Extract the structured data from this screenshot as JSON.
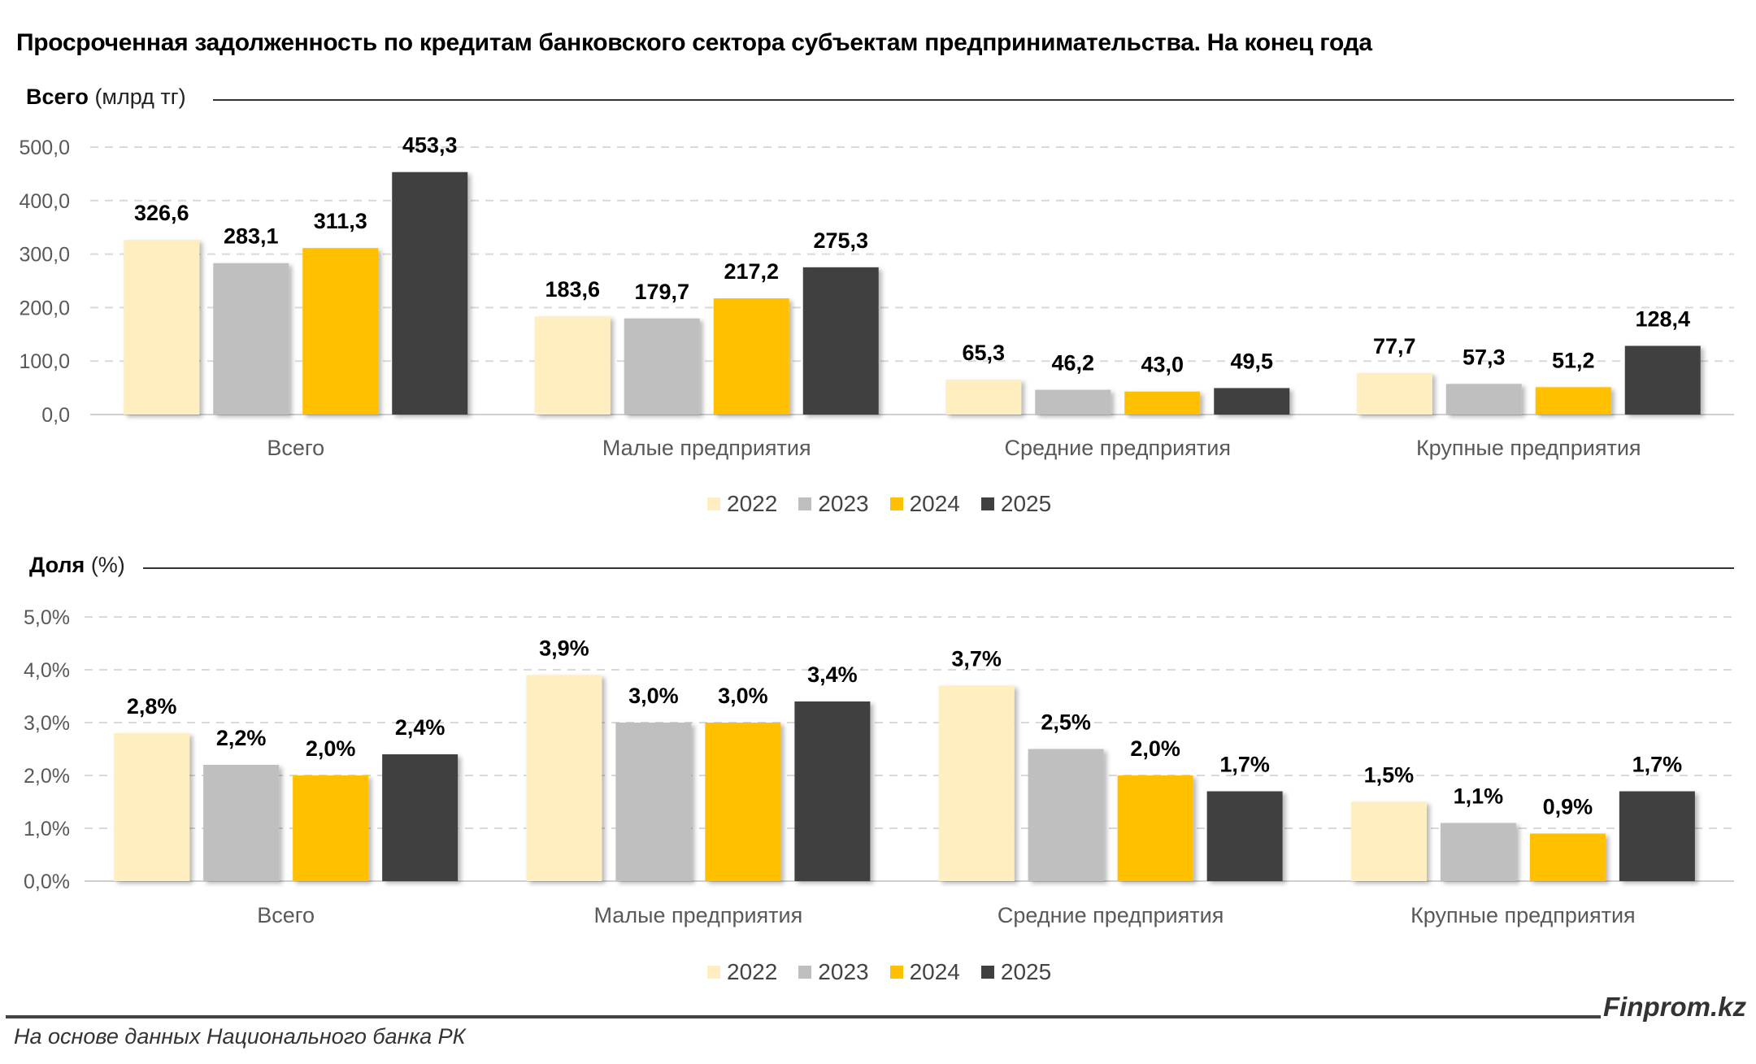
{
  "title": "Просроченная задолженность по кредитам банковского сектора субъектам предпринимательства. На конец года",
  "colors": {
    "2022": "#FFEFC0",
    "2023": "#BFBFBF",
    "2024": "#FFC000",
    "2025": "#404040"
  },
  "chart_data": [
    {
      "type": "bar",
      "section_label_bold": "Всего",
      "section_label_unit": "(млрд тг)",
      "categories": [
        "Всего",
        "Малые предприятия",
        "Средние предприятия",
        "Крупные предприятия"
      ],
      "ylim": [
        0,
        500
      ],
      "yticks": [
        "0,0",
        "100,0",
        "200,0",
        "300,0",
        "400,0",
        "500,0"
      ],
      "grid": true,
      "legend": "bottom",
      "series": [
        {
          "name": "2022",
          "values": [
            326.6,
            183.6,
            65.3,
            77.7
          ],
          "labels": [
            "326,6",
            "183,6",
            "65,3",
            "77,7"
          ]
        },
        {
          "name": "2023",
          "values": [
            283.1,
            179.7,
            46.2,
            57.3
          ],
          "labels": [
            "283,1",
            "179,7",
            "46,2",
            "57,3"
          ]
        },
        {
          "name": "2024",
          "values": [
            311.3,
            217.2,
            43.0,
            51.2
          ],
          "labels": [
            "311,3",
            "217,2",
            "43,0",
            "51,2"
          ]
        },
        {
          "name": "2025",
          "values": [
            453.3,
            275.3,
            49.5,
            128.4
          ],
          "labels": [
            "453,3",
            "275,3",
            "49,5",
            "128,4"
          ]
        }
      ]
    },
    {
      "type": "bar",
      "section_label_bold": "Доля",
      "section_label_unit": "(%)",
      "categories": [
        "Всего",
        "Малые предприятия",
        "Средние предприятия",
        "Крупные предприятия"
      ],
      "ylim": [
        0,
        5
      ],
      "yticks": [
        "0,0%",
        "1,0%",
        "2,0%",
        "3,0%",
        "4,0%",
        "5,0%"
      ],
      "grid": true,
      "legend": "bottom",
      "series": [
        {
          "name": "2022",
          "values": [
            2.8,
            3.9,
            3.7,
            1.5
          ],
          "labels": [
            "2,8%",
            "3,9%",
            "3,7%",
            "1,5%"
          ]
        },
        {
          "name": "2023",
          "values": [
            2.2,
            3.0,
            2.5,
            1.1
          ],
          "labels": [
            "2,2%",
            "3,0%",
            "2,5%",
            "1,1%"
          ]
        },
        {
          "name": "2024",
          "values": [
            2.0,
            3.0,
            2.0,
            0.9
          ],
          "labels": [
            "2,0%",
            "3,0%",
            "2,0%",
            "0,9%"
          ]
        },
        {
          "name": "2025",
          "values": [
            2.4,
            3.4,
            1.7,
            1.7
          ],
          "labels": [
            "2,4%",
            "3,4%",
            "1,7%",
            "1,7%"
          ]
        }
      ]
    }
  ],
  "footer": {
    "brand": "Finprom.kz",
    "source": "На основе данных Национального банка РК"
  }
}
